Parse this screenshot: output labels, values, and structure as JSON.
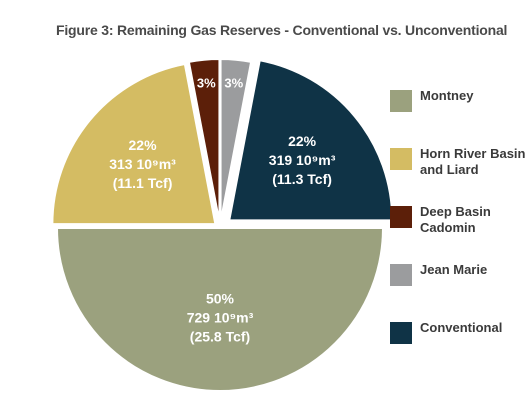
{
  "title": "Figure 3:  Remaining Gas Reserves - Conventional vs. Unconventional",
  "colors": {
    "montney": "#9ba17e",
    "horn_river": "#d4bc63",
    "deep_basin": "#5c1f09",
    "jean_marie": "#9b9c9e",
    "conventional": "#0f3346"
  },
  "legend": [
    {
      "label": "Montney",
      "color": "#9ba17e"
    },
    {
      "label": "Horn River Basin and Liard",
      "color": "#d4bc63"
    },
    {
      "label": "Deep Basin Cadomin",
      "color": "#5c1f09"
    },
    {
      "label": "Jean Marie",
      "color": "#9b9c9e"
    },
    {
      "label": "Conventional",
      "color": "#0f3346"
    }
  ],
  "chart_data": {
    "type": "pie",
    "title": "Figure 3:  Remaining Gas Reserves - Conventional vs. Unconventional",
    "legend_position": "right",
    "slices": [
      {
        "name": "Montney",
        "percent": 50,
        "percent_label": "50%",
        "volume_label": "729 10⁹m³",
        "tcf_label": "(25.8 Tcf)",
        "color": "#9ba17e"
      },
      {
        "name": "Horn River Basin and Liard",
        "percent": 22,
        "percent_label": "22%",
        "volume_label": "313 10⁹m³",
        "tcf_label": "(11.1 Tcf)",
        "color": "#d4bc63"
      },
      {
        "name": "Deep Basin Cadomin",
        "percent": 3,
        "percent_label": "3%",
        "color": "#5c1f09"
      },
      {
        "name": "Jean Marie",
        "percent": 3,
        "percent_label": "3%",
        "color": "#9b9c9e"
      },
      {
        "name": "Conventional",
        "percent": 22,
        "percent_label": "22%",
        "volume_label": "319 10⁹m³",
        "tcf_label": "(11.3 Tcf)",
        "color": "#0f3346"
      }
    ]
  }
}
